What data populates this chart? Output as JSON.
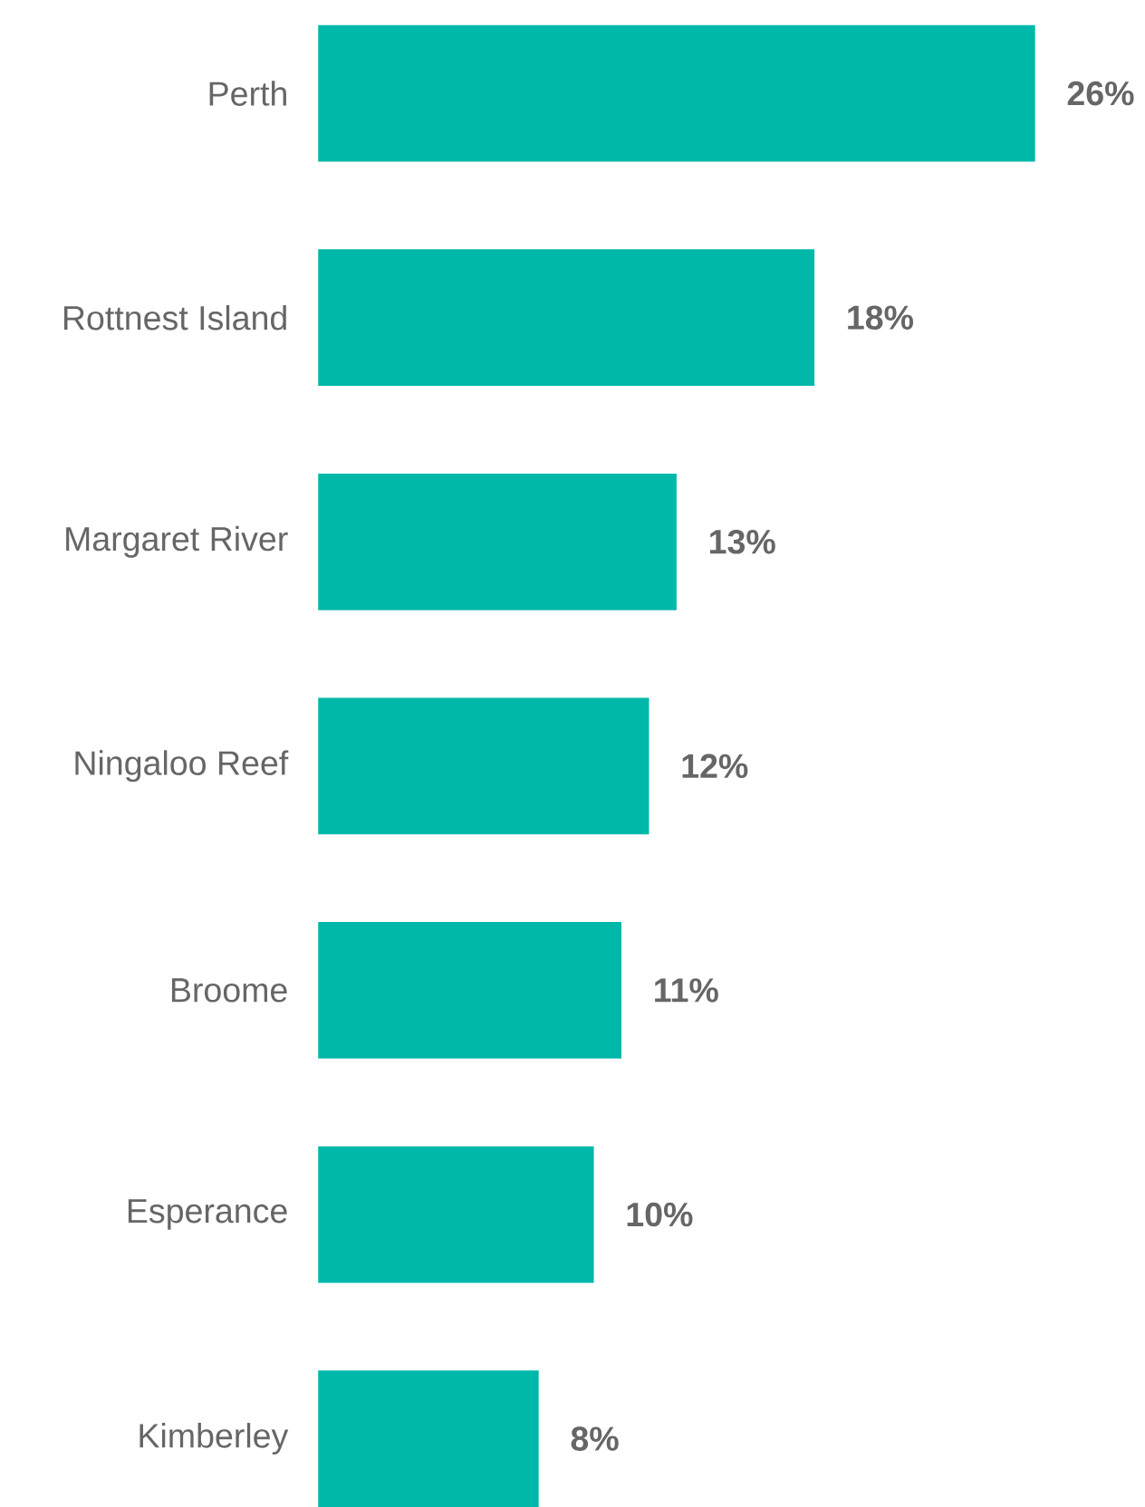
{
  "chart_data": {
    "type": "bar",
    "orientation": "horizontal",
    "categories": [
      "Perth",
      "Rottnest Island",
      "Margaret River",
      "Ningaloo Reef",
      "Broome",
      "Esperance",
      "Kimberley"
    ],
    "values": [
      26,
      18,
      13,
      12,
      11,
      10,
      8
    ],
    "value_labels": [
      "26%",
      "18%",
      "13%",
      "12%",
      "11%",
      "10%",
      "8%"
    ],
    "color": "#00b8a9"
  }
}
